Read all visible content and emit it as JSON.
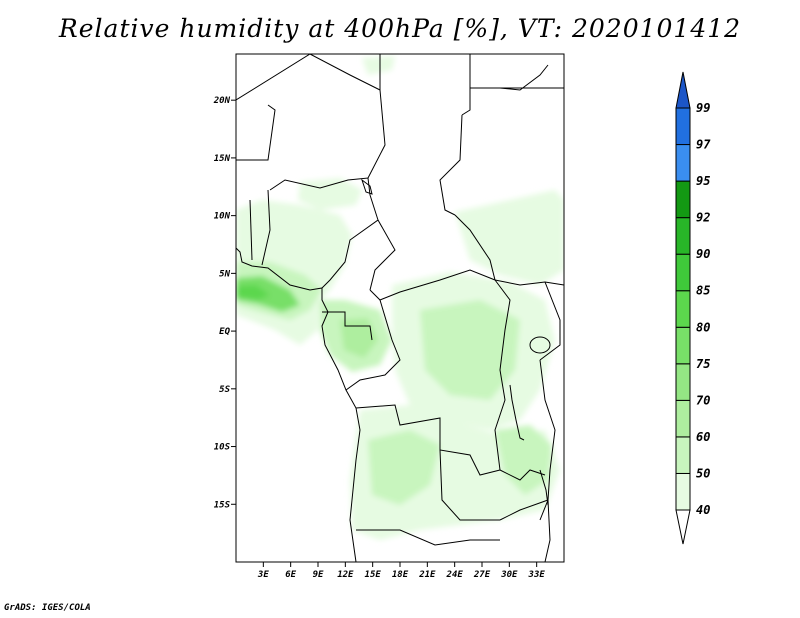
{
  "title": "Relative humidity at 400hPa [%], VT: 2020101412",
  "credit": "GrADS: IGES/COLA",
  "map": {
    "lon_range": [
      0,
      36
    ],
    "lat_range": [
      -20,
      24
    ],
    "lat_ticks": [
      {
        "lat": 20,
        "label": "20N"
      },
      {
        "lat": 15,
        "label": "15N"
      },
      {
        "lat": 10,
        "label": "10N"
      },
      {
        "lat": 5,
        "label": "5N"
      },
      {
        "lat": 0,
        "label": "EQ"
      },
      {
        "lat": -5,
        "label": "5S"
      },
      {
        "lat": -10,
        "label": "10S"
      },
      {
        "lat": -15,
        "label": "15S"
      }
    ],
    "lon_ticks": [
      {
        "lon": 3,
        "label": "3E"
      },
      {
        "lon": 6,
        "label": "6E"
      },
      {
        "lon": 9,
        "label": "9E"
      },
      {
        "lon": 12,
        "label": "12E"
      },
      {
        "lon": 15,
        "label": "15E"
      },
      {
        "lon": 18,
        "label": "18E"
      },
      {
        "lon": 21,
        "label": "21E"
      },
      {
        "lon": 24,
        "label": "24E"
      },
      {
        "lon": 27,
        "label": "27E"
      },
      {
        "lon": 30,
        "label": "30E"
      },
      {
        "lon": 33,
        "label": "33E"
      }
    ]
  },
  "colorbar": {
    "levels": [
      "40",
      "50",
      "60",
      "70",
      "75",
      "80",
      "85",
      "90",
      "92",
      "95",
      "97",
      "99"
    ],
    "colors": [
      "#ffffff",
      "#e6fbe2",
      "#c8f5be",
      "#aeee9f",
      "#94e684",
      "#78df68",
      "#5cd74d",
      "#3fc93a",
      "#28b628",
      "#139913",
      "#3a8ef0",
      "#2170e0",
      "#1c56c8"
    ]
  },
  "humidity_colors": {
    "very_light": "#e6fbe2",
    "light": "#c8f5be",
    "medium": "#aeee9f",
    "strong": "#78df68",
    "stronger": "#5cd74d"
  }
}
